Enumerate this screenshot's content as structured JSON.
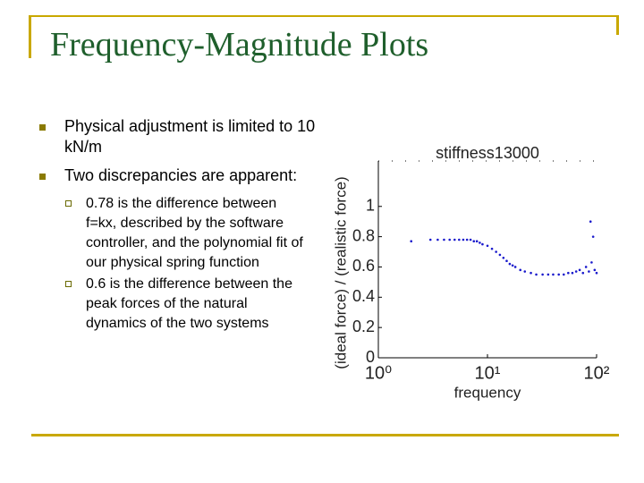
{
  "header": {
    "title": "Frequency-Magnitude Plots"
  },
  "bullets": [
    {
      "text": "Physical adjustment is limited to 10 kN/m"
    },
    {
      "text": "Two discrepancies are apparent:",
      "subbullets": [
        "0.78 is the difference between f=kx, described by the software controller, and the polynomial fit of our physical spring function",
        "0.6 is the difference between the peak forces of the natural dynamics of the two systems"
      ]
    }
  ],
  "chart_data": {
    "type": "scatter",
    "title": "stiffness13000",
    "xlabel": "frequency",
    "ylabel": "(ideal force) / (realistic force)",
    "color": "#1a1acc",
    "xscale": "log",
    "xlim": [
      1,
      100
    ],
    "ylim": [
      0,
      1.3
    ],
    "xticks": [
      {
        "value": 1,
        "label": "10⁰"
      },
      {
        "value": 10,
        "label": "10¹"
      },
      {
        "value": 100,
        "label": "10²"
      }
    ],
    "yticks": [
      0,
      0.2,
      0.4,
      0.6,
      0.8,
      1
    ],
    "x": [
      2,
      3,
      3.5,
      4,
      4.5,
      5,
      5.5,
      6,
      6.5,
      7,
      7.5,
      8,
      8.5,
      9,
      10,
      11,
      12,
      13,
      14,
      15,
      16,
      17,
      18,
      20,
      22,
      25,
      28,
      32,
      36,
      40,
      45,
      50,
      55,
      60,
      65,
      70,
      75,
      80,
      85,
      88,
      90,
      93,
      96,
      100
    ],
    "values": [
      0.77,
      0.78,
      0.78,
      0.78,
      0.78,
      0.78,
      0.78,
      0.78,
      0.78,
      0.78,
      0.77,
      0.77,
      0.76,
      0.75,
      0.74,
      0.72,
      0.7,
      0.68,
      0.66,
      0.64,
      0.62,
      0.61,
      0.6,
      0.58,
      0.57,
      0.56,
      0.55,
      0.55,
      0.55,
      0.55,
      0.55,
      0.55,
      0.56,
      0.56,
      0.57,
      0.58,
      0.56,
      0.6,
      0.57,
      0.9,
      0.63,
      0.8,
      0.58,
      0.56
    ]
  }
}
